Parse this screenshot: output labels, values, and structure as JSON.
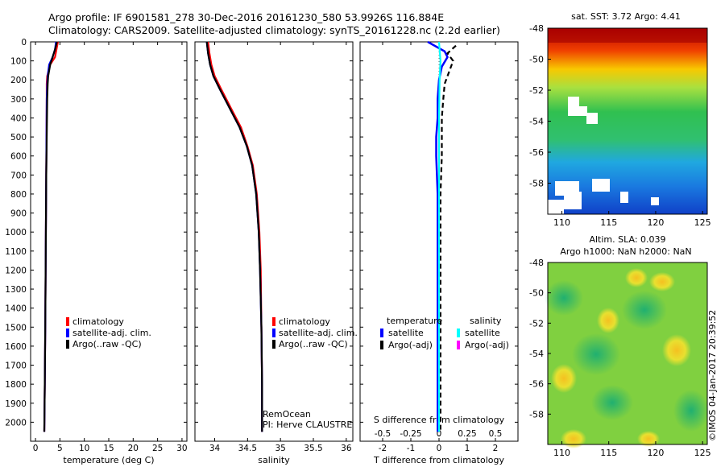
{
  "header": {
    "line1": "Argo profile: IF 6901581_278 30-Dec-2016 20161230_580 53.9926S 116.884E",
    "line2": "Climatology: CARS2009. Satellite-adjusted climatology: synTS_20161228.nc (2.2d earlier)"
  },
  "colors": {
    "climatology": "#ff0000",
    "satellite": "#0000ff",
    "argo": "#000000",
    "sat_salinity": "#00ffff",
    "argo_salinity": "#ff00ff"
  },
  "chart_data": [
    {
      "type": "line",
      "id": "temperature",
      "xlabel": "temperature (deg C)",
      "xlim": [
        -1,
        31
      ],
      "xticks": [
        0,
        5,
        10,
        15,
        20,
        25,
        30
      ],
      "ylim": [
        2100,
        0
      ],
      "yticks": [
        0,
        100,
        200,
        300,
        400,
        500,
        600,
        700,
        800,
        900,
        1000,
        1100,
        1200,
        1300,
        1400,
        1500,
        1600,
        1700,
        1800,
        1900,
        2000
      ],
      "series": [
        {
          "name": "climatology",
          "color": "#ff0000",
          "x": [
            4.6,
            4.3,
            4.0,
            3.0,
            2.4,
            2.3,
            2.3,
            2.25,
            2.2,
            2.15,
            2.1,
            2.05,
            2.0,
            1.9,
            1.8
          ],
          "y": [
            0,
            40,
            80,
            120,
            180,
            220,
            300,
            500,
            700,
            900,
            1100,
            1300,
            1500,
            1800,
            2050
          ]
        },
        {
          "name": "satellite-adj. clim.",
          "color": "#0000ff",
          "x": [
            4.2,
            4.0,
            3.5,
            2.8,
            2.5,
            2.4,
            2.3,
            2.25,
            2.2,
            2.15,
            2.1,
            2.05,
            2.0,
            1.9,
            1.8
          ],
          "y": [
            0,
            40,
            80,
            120,
            180,
            220,
            300,
            500,
            700,
            900,
            1100,
            1300,
            1500,
            1800,
            2050
          ]
        },
        {
          "name": "Argo(..raw -QC)",
          "color": "#000000",
          "x": [
            4.4,
            4.0,
            3.5,
            3.0,
            2.6,
            2.5,
            2.4,
            2.3,
            2.2,
            2.15,
            2.1,
            2.05,
            2.0,
            1.9,
            1.8
          ],
          "y": [
            0,
            40,
            80,
            120,
            180,
            220,
            300,
            500,
            700,
            900,
            1100,
            1300,
            1500,
            1800,
            2050
          ]
        }
      ],
      "legend": [
        "climatology",
        "satellite-adj. clim.",
        "Argo(..raw -QC)"
      ],
      "legend_position": "center"
    },
    {
      "type": "line",
      "id": "salinity",
      "xlabel": "salinity",
      "xlim": [
        33.7,
        36.1
      ],
      "xticks": [
        34,
        34.5,
        35,
        35.5,
        36
      ],
      "xticklabels": [
        "34",
        "34.5",
        "35",
        "35.5",
        "36"
      ],
      "ylim": [
        2100,
        0
      ],
      "series": [
        {
          "name": "climatology",
          "color": "#ff0000",
          "x": [
            33.9,
            33.92,
            33.95,
            34.0,
            34.1,
            34.25,
            34.4,
            34.5,
            34.58,
            34.64,
            34.68,
            34.7,
            34.71,
            34.72,
            34.72
          ],
          "y": [
            0,
            60,
            120,
            180,
            250,
            350,
            450,
            550,
            650,
            800,
            1000,
            1200,
            1500,
            1800,
            2050
          ]
        },
        {
          "name": "satellite-adj. clim.",
          "color": "#0000ff",
          "x": [
            33.88,
            33.9,
            33.93,
            33.98,
            34.08,
            34.23,
            34.38,
            34.49,
            34.57,
            34.63,
            34.67,
            34.69,
            34.71,
            34.72,
            34.72
          ],
          "y": [
            0,
            60,
            120,
            180,
            250,
            350,
            450,
            550,
            650,
            800,
            1000,
            1200,
            1500,
            1800,
            2050
          ]
        },
        {
          "name": "Argo(..raw -QC)",
          "color": "#000000",
          "x": [
            33.88,
            33.9,
            33.93,
            33.98,
            34.08,
            34.23,
            34.38,
            34.49,
            34.57,
            34.63,
            34.67,
            34.69,
            34.71,
            34.72,
            34.72
          ],
          "y": [
            0,
            60,
            120,
            180,
            250,
            350,
            450,
            550,
            650,
            800,
            1000,
            1200,
            1500,
            1800,
            2050
          ]
        }
      ],
      "legend": [
        "climatology",
        "satellite-adj. clim.",
        "Argo(..raw -QC)"
      ],
      "legend_position": "center",
      "annotations": [
        "RemOcean",
        "PI: Herve CLAUSTRE"
      ]
    },
    {
      "type": "line",
      "id": "difference",
      "xlabel": "T difference from climatology",
      "top_label": "S difference from climatology",
      "xlim": [
        -2.8,
        2.8
      ],
      "xticks": [
        -2,
        -1,
        0,
        1,
        2
      ],
      "top_ticks": [
        -0.5,
        -0.25,
        0,
        0.25,
        0.5
      ],
      "top_ticklabels": [
        "-0.5",
        "-0.25",
        "0",
        "0.25",
        "0.5"
      ],
      "ylim": [
        2100,
        0
      ],
      "series": [
        {
          "name": "temperature satellite",
          "color": "#0000ff",
          "x": [
            -0.4,
            0.2,
            0.3,
            0.1,
            0.0,
            -0.05,
            -0.05,
            -0.1,
            -0.1,
            -0.05,
            -0.05,
            -0.05,
            -0.05,
            -0.05
          ],
          "y": [
            0,
            50,
            80,
            130,
            200,
            300,
            400,
            500,
            600,
            800,
            1000,
            1300,
            1600,
            2050
          ]
        },
        {
          "name": "temperature Argo(-adj)",
          "color": "#000000",
          "x": [
            0.6,
            0.3,
            0.5,
            0.4,
            0.2,
            0.15,
            0.1,
            0.1,
            0.1,
            0.05,
            0.05,
            0.05,
            0.05,
            0.05
          ],
          "y": [
            20,
            60,
            100,
            140,
            220,
            300,
            400,
            500,
            600,
            800,
            1000,
            1300,
            1600,
            2050
          ]
        },
        {
          "name": "salinity satellite",
          "color": "#00ffff",
          "x": [
            0.0,
            0.05,
            0.02,
            0.0,
            0.0,
            0.0,
            0.0,
            0.0,
            0.0
          ],
          "y": [
            0,
            100,
            200,
            400,
            600,
            900,
            1200,
            1600,
            2050
          ]
        },
        {
          "name": "salinity Argo(-adj)",
          "color": "#ff00ff",
          "x": [],
          "y": []
        }
      ],
      "legend_headers": [
        "temperature",
        "salinity"
      ],
      "legend": [
        "satellite",
        "Argo(-adj)",
        "satellite",
        "Argo(-adj)"
      ]
    },
    {
      "type": "heatmap",
      "id": "sst_map",
      "title": "sat. SST: 3.72  Argo: 4.41",
      "xlim": [
        108.5,
        125.5
      ],
      "ylim": [
        -60,
        -48
      ],
      "xticks": [
        110,
        115,
        120,
        125
      ],
      "yticks": [
        -48,
        -50,
        -52,
        -54,
        -56,
        -58
      ]
    },
    {
      "type": "heatmap",
      "id": "sla_map",
      "title1": "Altim. SLA: 0.039",
      "title2": "Argo h1000: NaN h2000: NaN",
      "xlim": [
        108.5,
        125.5
      ],
      "ylim": [
        -60,
        -48
      ],
      "xticks": [
        110,
        115,
        120,
        125
      ],
      "yticks": [
        -48,
        -50,
        -52,
        -54,
        -56,
        -58
      ]
    }
  ],
  "footer": {
    "stamp": "©IMOS 04-Jan-2017 20:39:52"
  }
}
